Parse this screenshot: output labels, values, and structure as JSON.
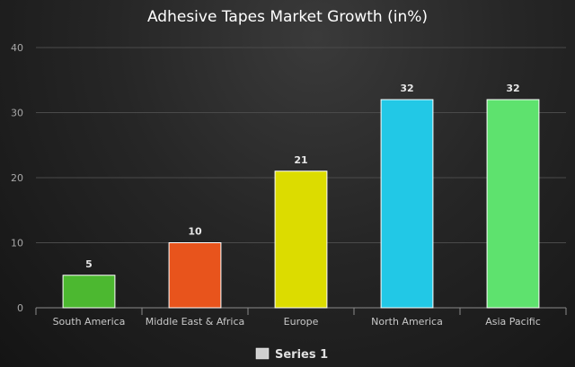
{
  "chart_data": {
    "type": "bar",
    "title": "Adhesive Tapes Market Growth (in%)",
    "categories": [
      "South America",
      "Middle East & Africa",
      "Europe",
      "North America",
      "Asia Pacific"
    ],
    "series": [
      {
        "name": "Series 1",
        "values": [
          5,
          10,
          21,
          32,
          32
        ]
      }
    ],
    "bar_colors": [
      "#4cb830",
      "#e8541c",
      "#dcdc00",
      "#22c8e6",
      "#5ee26e"
    ],
    "ylim": [
      0,
      40
    ],
    "yticks": [
      0,
      10,
      20,
      30,
      40
    ],
    "grid": true,
    "data_labels": true,
    "legend_position": "bottom",
    "legend_swatch_color": "#d0d0d0"
  }
}
